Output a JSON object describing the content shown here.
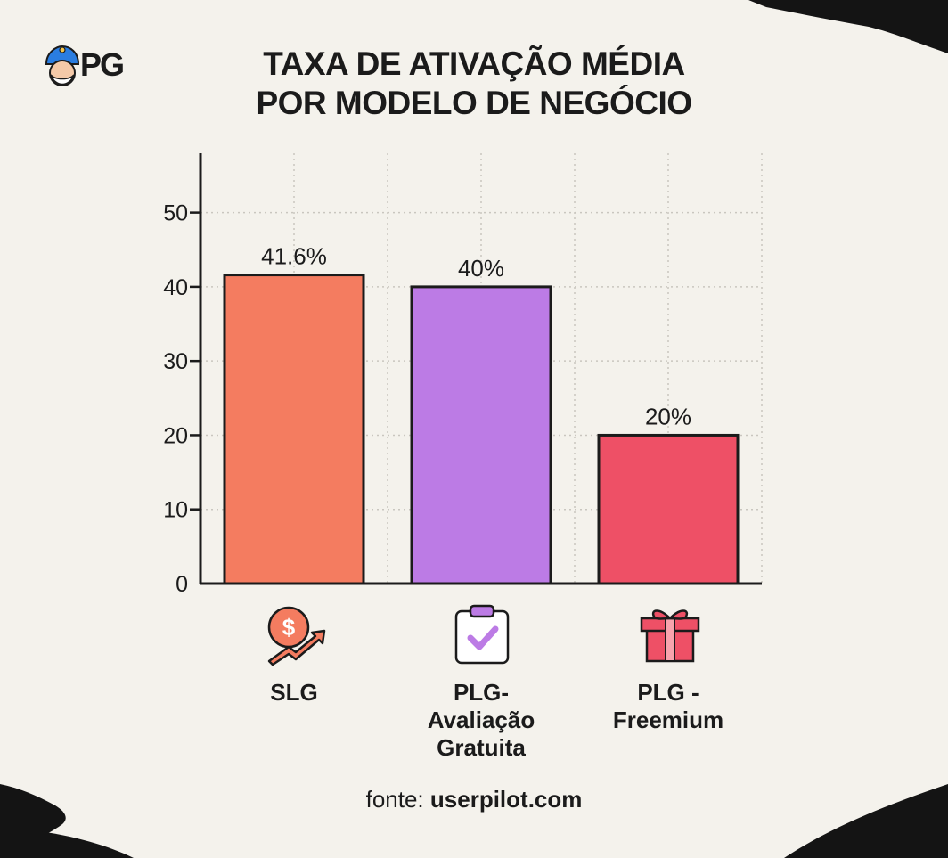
{
  "logo": {
    "text": "PG"
  },
  "title_lines": [
    "TAXA DE ATIVAÇÃO MÉDIA",
    "POR MODELO DE NEGÓCIO"
  ],
  "source": {
    "prefix": "fonte:",
    "domain": "userpilot.com"
  },
  "colors": {
    "background": "#f4f2ec",
    "bar_slg": "#f47c60",
    "bar_trial": "#bc7be5",
    "bar_freemium": "#ee5066",
    "axis": "#1b1b1b",
    "grid": "#c9c6bf"
  },
  "chart_data": {
    "type": "bar",
    "title": "TAXA DE ATIVAÇÃO MÉDIA POR MODELO DE NEGÓCIO",
    "categories": [
      "SLG",
      "PLG-\nAvaliação\nGratuita",
      "PLG -\nFreemium"
    ],
    "values": [
      41.6,
      40,
      20
    ],
    "data_labels": [
      "41.6%",
      "40%",
      "20%"
    ],
    "bar_colors": [
      "#f47c60",
      "#bc7be5",
      "#ee5066"
    ],
    "category_icons": [
      "dollar-growth-icon",
      "clipboard-check-icon",
      "gift-icon"
    ],
    "yticks": [
      0,
      10,
      20,
      30,
      40,
      50
    ],
    "ytick_labels": [
      "0",
      "10",
      "20",
      "30",
      "40",
      "50"
    ],
    "ylim": [
      0,
      58
    ],
    "grid": true,
    "xlabel": "",
    "ylabel": ""
  }
}
